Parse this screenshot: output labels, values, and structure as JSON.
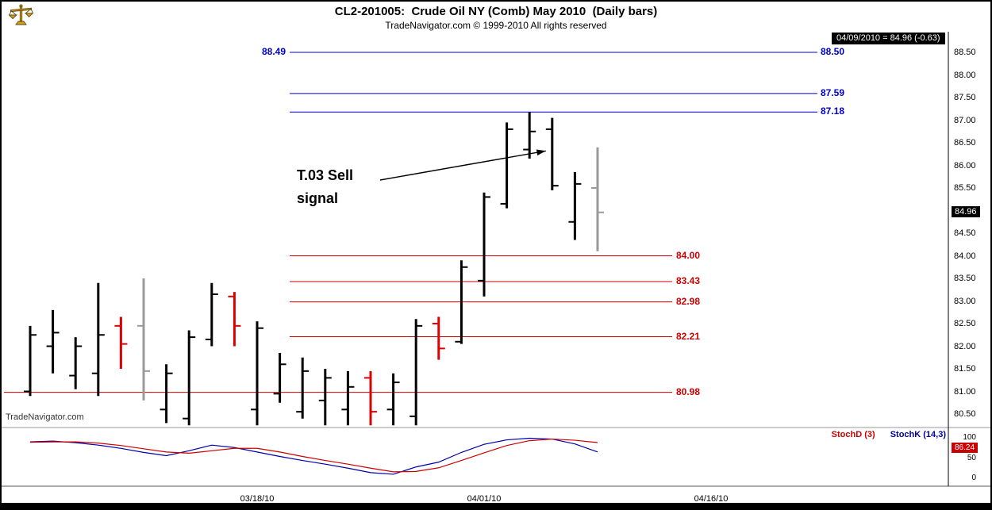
{
  "header": {
    "icon": "gold-scales-icon",
    "title": "CL2-201005:  Crude Oil NY (Comb) May 2010  (Daily bars)",
    "subtitle": "TradeNavigator.com © 1999-2010 All rights reserved",
    "quote_badge": "04/09/2010 = 84.96 (-0.63)"
  },
  "watermark": "TradeNavigator.com",
  "colors": {
    "black_bar": "#000000",
    "red_bar": "#dd0000",
    "gray_bar": "#9a9a9a",
    "resistance": "#0000cc",
    "support": "#cc0000",
    "stoch_k": "#0000aa",
    "stoch_d": "#cc0000",
    "badge_bg": "#000000",
    "stoch_badge_bg": "#cc0000"
  },
  "chart_data": {
    "type": "ohlc-bar",
    "symbol": "CL2-201005",
    "instrument": "Crude Oil NY (Comb) May 2010",
    "interval": "Daily bars",
    "price_axis": {
      "ticks": [
        "88.50",
        "88.00",
        "87.50",
        "87.00",
        "86.50",
        "86.00",
        "85.50",
        "85.00",
        "84.50",
        "84.00",
        "83.50",
        "83.00",
        "82.50",
        "82.00",
        "81.50",
        "81.00",
        "80.50"
      ],
      "min": 80.2,
      "max": 88.9
    },
    "resistance_lines": [
      {
        "price": 88.5,
        "label": "88.50",
        "left_label": "88.49"
      },
      {
        "price": 87.59,
        "label": "87.59"
      },
      {
        "price": 87.18,
        "label": "87.18"
      }
    ],
    "support_lines": [
      {
        "price": 84.0,
        "label": "84.00",
        "full_width": false
      },
      {
        "price": 83.43,
        "label": "83.43",
        "full_width": false
      },
      {
        "price": 82.98,
        "label": "82.98",
        "full_width": false
      },
      {
        "price": 82.21,
        "label": "82.21",
        "full_width": false
      },
      {
        "price": 80.98,
        "label": "80.98",
        "full_width": true
      }
    ],
    "bars": [
      {
        "date": "03/04/10",
        "o": 81.0,
        "h": 82.45,
        "l": 80.9,
        "c": 82.25,
        "color": "black"
      },
      {
        "date": "03/05/10",
        "o": 82.0,
        "h": 82.8,
        "l": 81.4,
        "c": 82.3,
        "color": "black"
      },
      {
        "date": "03/08/10",
        "o": 81.35,
        "h": 82.2,
        "l": 81.05,
        "c": 82.0,
        "color": "black"
      },
      {
        "date": "03/09/10",
        "o": 81.4,
        "h": 83.4,
        "l": 80.9,
        "c": 82.25,
        "color": "black"
      },
      {
        "date": "03/10/10",
        "o": 82.45,
        "h": 82.65,
        "l": 81.5,
        "c": 82.05,
        "color": "red"
      },
      {
        "date": "03/11/10",
        "o": 82.45,
        "h": 83.5,
        "l": 80.8,
        "c": 81.45,
        "color": "gray"
      },
      {
        "date": "03/12/10",
        "o": 80.6,
        "h": 81.6,
        "l": 80.3,
        "c": 81.4,
        "color": "black"
      },
      {
        "date": "03/15/10",
        "o": 80.4,
        "h": 82.35,
        "l": 80.25,
        "c": 82.2,
        "color": "black"
      },
      {
        "date": "03/16/10",
        "o": 82.15,
        "h": 83.4,
        "l": 82.0,
        "c": 83.15,
        "color": "black"
      },
      {
        "date": "03/17/10",
        "o": 83.1,
        "h": 83.2,
        "l": 82.0,
        "c": 82.45,
        "color": "red"
      },
      {
        "date": "03/18/10",
        "o": 80.6,
        "h": 82.55,
        "l": 80.25,
        "c": 82.4,
        "color": "black"
      },
      {
        "date": "03/19/10",
        "o": 80.95,
        "h": 81.85,
        "l": 80.75,
        "c": 81.6,
        "color": "black"
      },
      {
        "date": "03/22/10",
        "o": 80.55,
        "h": 81.75,
        "l": 80.4,
        "c": 81.45,
        "color": "black"
      },
      {
        "date": "03/23/10",
        "o": 80.8,
        "h": 81.5,
        "l": 80.25,
        "c": 81.3,
        "color": "black"
      },
      {
        "date": "03/24/10",
        "o": 80.6,
        "h": 81.45,
        "l": 80.25,
        "c": 81.1,
        "color": "black"
      },
      {
        "date": "03/25/10",
        "o": 81.3,
        "h": 81.45,
        "l": 80.25,
        "c": 80.55,
        "color": "red"
      },
      {
        "date": "03/26/10",
        "o": 80.6,
        "h": 81.4,
        "l": 80.25,
        "c": 81.2,
        "color": "black"
      },
      {
        "date": "03/29/10",
        "o": 80.45,
        "h": 82.6,
        "l": 80.25,
        "c": 82.45,
        "color": "black"
      },
      {
        "date": "03/30/10",
        "o": 82.5,
        "h": 82.65,
        "l": 81.7,
        "c": 81.95,
        "color": "red"
      },
      {
        "date": "03/31/10",
        "o": 82.1,
        "h": 83.9,
        "l": 82.05,
        "c": 83.75,
        "color": "black"
      },
      {
        "date": "04/01/10",
        "o": 83.45,
        "h": 85.4,
        "l": 83.1,
        "c": 85.3,
        "color": "black"
      },
      {
        "date": "04/05/10",
        "o": 85.15,
        "h": 86.95,
        "l": 85.05,
        "c": 86.8,
        "color": "black"
      },
      {
        "date": "04/06/10",
        "o": 86.35,
        "h": 87.18,
        "l": 86.15,
        "c": 86.75,
        "color": "black"
      },
      {
        "date": "04/07/10",
        "o": 86.8,
        "h": 87.05,
        "l": 85.45,
        "c": 85.55,
        "color": "black"
      },
      {
        "date": "04/08/10",
        "o": 84.75,
        "h": 85.85,
        "l": 84.35,
        "c": 85.59,
        "color": "black"
      },
      {
        "date": "04/09/10",
        "o": 85.5,
        "h": 86.4,
        "l": 84.1,
        "c": 84.96,
        "color": "gray"
      }
    ],
    "x_axis": {
      "labels": [
        {
          "text": "03/18/10",
          "bar_index": 10
        },
        {
          "text": "04/01/10",
          "bar_index": 20
        },
        {
          "text": "04/16/10",
          "bar_index": 30
        }
      ]
    },
    "annotation": {
      "text": "T.03 Sell\nsignal",
      "arrow_to": {
        "bar_index": 23,
        "price": 86.32
      }
    },
    "last_price": {
      "label": "84.96",
      "date": "04/09/2010",
      "value": 84.96,
      "change": -0.63
    },
    "stochastic": {
      "d_label": "StochD (3)",
      "k_label": "StochK (14,3)",
      "axis_ticks": [
        "100",
        "50",
        "0"
      ],
      "d_last": "86.24",
      "k": [
        88,
        90,
        86,
        80,
        72,
        62,
        54,
        66,
        80,
        74,
        63,
        52,
        42,
        33,
        23,
        12,
        8,
        26,
        38,
        62,
        82,
        93,
        97,
        95,
        83,
        63
      ],
      "d": [
        87,
        88,
        88,
        85,
        79,
        71,
        63,
        60,
        66,
        72,
        72,
        63,
        52,
        42,
        33,
        23,
        14,
        15,
        24,
        42,
        61,
        79,
        91,
        95,
        92,
        86.24
      ]
    }
  }
}
